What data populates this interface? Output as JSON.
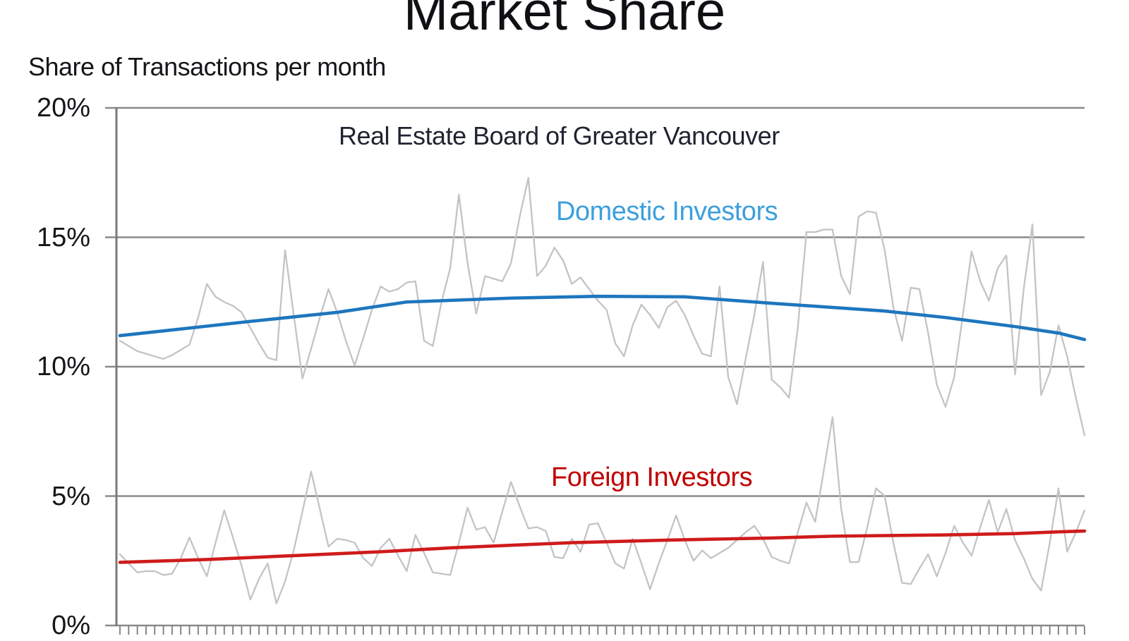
{
  "page": {
    "background": "#ffffff"
  },
  "chart_data": {
    "type": "line",
    "title": "Market Share",
    "subtitle": "Share of Transactions per month",
    "annotation": "Real Estate Board of Greater Vancouver",
    "grid": "horizontal",
    "legend_position": "inline-labels-on-plot",
    "y_axis": {
      "range": [
        0,
        20
      ],
      "unit": "%",
      "ticks": [
        {
          "value": 20,
          "label": "20%"
        },
        {
          "value": 15,
          "label": "15%"
        },
        {
          "value": 10,
          "label": "10%"
        },
        {
          "value": 5,
          "label": "5%"
        },
        {
          "value": 0,
          "label": "0%"
        }
      ]
    },
    "x_axis": {
      "tick_count": 112,
      "unit": "month",
      "labels_visible": false
    },
    "colors": {
      "noisy_line": "#c3c3c8",
      "domestic_trend": "#1e76bd",
      "domestic_label": "#3d9fdd",
      "foreign_trend": "#cf1b1b",
      "foreign_label": "#c00000",
      "gridline": "#8a8a8a",
      "axis": "#7a7a7a"
    },
    "series": [
      {
        "name": "Domestic Investors (monthly share %)",
        "style": "noisy",
        "color": "#c3c3c8",
        "values": [
          11.0,
          10.8,
          10.6,
          10.5,
          10.4,
          10.3,
          10.45,
          10.65,
          10.85,
          11.9,
          13.2,
          12.7,
          12.5,
          12.35,
          12.1,
          11.5,
          10.9,
          10.35,
          10.25,
          14.5,
          12.0,
          9.55,
          10.7,
          11.9,
          13.0,
          12.1,
          11.0,
          10.05,
          11.1,
          12.2,
          13.1,
          12.9,
          13.0,
          13.25,
          13.3,
          11.0,
          10.8,
          12.5,
          13.8,
          16.65,
          14.0,
          12.05,
          13.5,
          13.4,
          13.3,
          14.0,
          15.8,
          17.3,
          13.5,
          13.9,
          14.6,
          14.1,
          13.2,
          13.45,
          13.0,
          12.55,
          12.2,
          10.9,
          10.4,
          11.6,
          12.4,
          12.0,
          11.5,
          12.3,
          12.55,
          12.0,
          11.2,
          10.5,
          10.4,
          13.1,
          9.6,
          8.55,
          10.3,
          12.0,
          14.05,
          9.5,
          9.2,
          8.8,
          11.5,
          15.2,
          15.2,
          15.3,
          15.3,
          13.5,
          12.8,
          15.8,
          16.0,
          15.95,
          14.5,
          12.3,
          11.0,
          13.05,
          13.0,
          11.3,
          9.3,
          8.45,
          9.6,
          12.0,
          14.45,
          13.3,
          12.55,
          13.8,
          14.3,
          9.7,
          13.0,
          15.5,
          8.9,
          9.8,
          11.6,
          10.4,
          8.8,
          7.35
        ]
      },
      {
        "name": "Domestic Investors (trend)",
        "label": "Domestic Investors",
        "style": "trend",
        "color": "#1e76bd",
        "label_color": "#3d9fdd",
        "x": [
          0,
          15,
          25,
          33,
          45,
          55,
          65,
          75,
          88,
          95,
          103,
          108,
          111
        ],
        "values": [
          11.2,
          11.75,
          12.1,
          12.5,
          12.65,
          12.72,
          12.7,
          12.45,
          12.15,
          11.9,
          11.55,
          11.3,
          11.05
        ]
      },
      {
        "name": "Foreign Investors (monthly share %)",
        "style": "noisy",
        "color": "#c3c3c8",
        "values": [
          2.75,
          2.4,
          2.05,
          2.1,
          2.1,
          1.95,
          2.0,
          2.6,
          3.4,
          2.6,
          1.9,
          3.2,
          4.45,
          3.4,
          2.3,
          1.0,
          1.8,
          2.4,
          0.85,
          1.7,
          2.9,
          4.4,
          5.95,
          4.5,
          3.05,
          3.35,
          3.3,
          3.2,
          2.6,
          2.3,
          3.0,
          3.35,
          2.7,
          2.1,
          3.5,
          2.8,
          2.05,
          2.0,
          1.95,
          3.2,
          4.55,
          3.7,
          3.8,
          3.2,
          4.4,
          5.55,
          4.6,
          3.75,
          3.8,
          3.65,
          2.65,
          2.6,
          3.35,
          2.85,
          3.9,
          3.95,
          3.2,
          2.4,
          2.2,
          3.35,
          2.4,
          1.4,
          2.4,
          3.3,
          4.25,
          3.3,
          2.5,
          2.9,
          2.6,
          2.8,
          3.0,
          3.3,
          3.6,
          3.85,
          3.35,
          2.65,
          2.5,
          2.4,
          3.6,
          4.75,
          4.0,
          6.0,
          8.05,
          4.5,
          2.45,
          2.45,
          3.8,
          5.3,
          5.0,
          3.2,
          1.65,
          1.6,
          2.2,
          2.75,
          1.9,
          2.8,
          3.85,
          3.2,
          2.7,
          3.8,
          4.85,
          3.6,
          4.5,
          3.3,
          2.6,
          1.8,
          1.35,
          3.2,
          5.3,
          2.85,
          3.6,
          4.45
        ]
      },
      {
        "name": "Foreign Investors (trend)",
        "label": "Foreign Investors",
        "style": "trend",
        "color": "#cf1b1b",
        "label_color": "#c00000",
        "x": [
          0,
          10,
          20,
          30,
          38,
          52,
          63,
          75,
          82,
          95,
          103,
          108,
          111
        ],
        "values": [
          2.44,
          2.55,
          2.7,
          2.85,
          3.0,
          3.2,
          3.3,
          3.38,
          3.45,
          3.5,
          3.55,
          3.62,
          3.65
        ]
      }
    ]
  }
}
